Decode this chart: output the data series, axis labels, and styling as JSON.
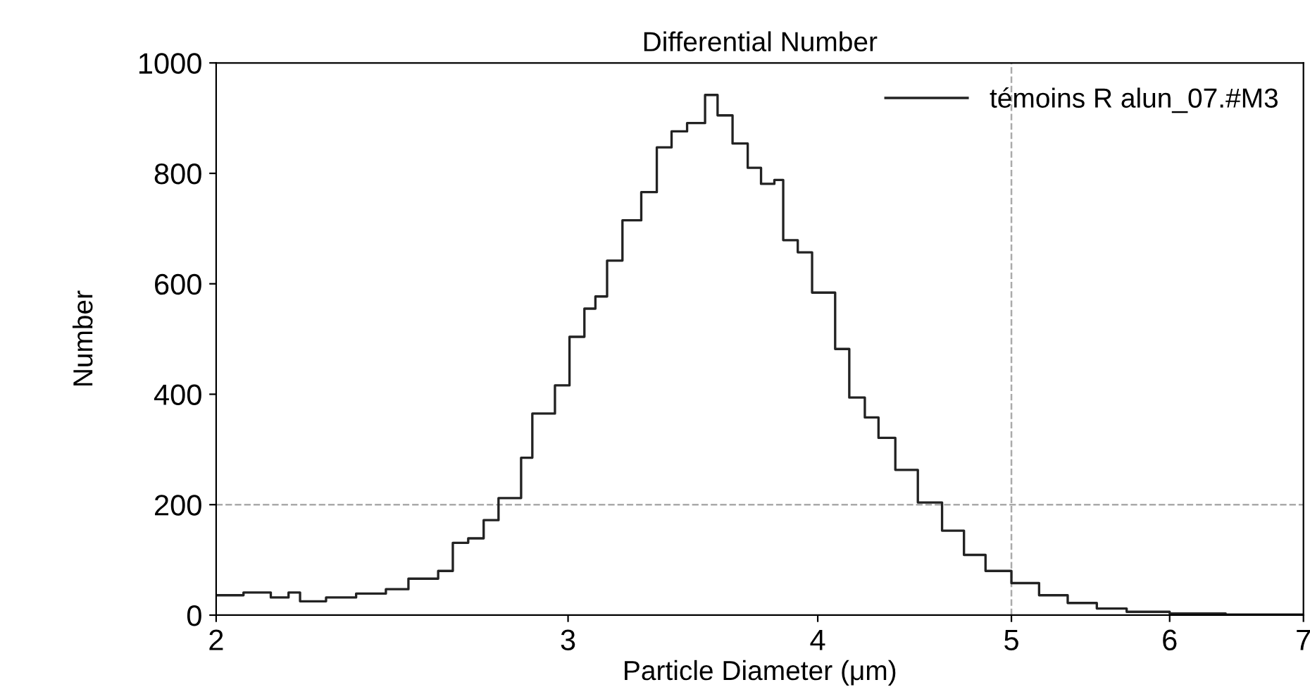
{
  "chart_data": {
    "type": "step",
    "title": "Differential Number",
    "xlabel": "Particle Diameter (μm)",
    "ylabel": "Number",
    "log": "x",
    "xlim": [
      2,
      7
    ],
    "xticks": [
      2,
      3,
      4,
      5,
      6,
      7
    ],
    "ylim": [
      0,
      1000
    ],
    "yticks": [
      0,
      200,
      400,
      600,
      800,
      1000
    ],
    "grid": false,
    "legend": "top right",
    "ref_lines": [
      {
        "axis": "y",
        "value": 200,
        "color": "#aaaaaa",
        "line_style": "dashed"
      },
      {
        "axis": "x",
        "value": 5,
        "color": "#aaaaaa",
        "line_style": "dashed"
      }
    ],
    "series": [
      {
        "name": "témoins R alun_07.#M3",
        "color": "#222222",
        "x": [
          2.0,
          2.064,
          2.13,
          2.174,
          2.203,
          2.27,
          2.35,
          2.432,
          2.496,
          2.583,
          2.627,
          2.674,
          2.722,
          2.769,
          2.842,
          2.879,
          2.955,
          3.005,
          3.057,
          3.096,
          3.138,
          3.194,
          3.264,
          3.323,
          3.38,
          3.441,
          3.513,
          3.564,
          3.626,
          3.69,
          3.747,
          3.805,
          3.844,
          3.909,
          3.974,
          4.081,
          4.148,
          4.223,
          4.29,
          4.374,
          4.489,
          4.616,
          4.734,
          4.853,
          5.0,
          5.162,
          5.335,
          5.517,
          5.71,
          6.0,
          6.4,
          7.0
        ],
        "values": [
          36,
          41,
          32,
          41,
          25,
          32,
          39,
          47,
          66,
          80,
          131,
          139,
          172,
          212,
          285,
          365,
          416,
          504,
          555,
          577,
          642,
          715,
          766,
          847,
          876,
          891,
          942,
          905,
          854,
          810,
          781,
          788,
          679,
          657,
          584,
          482,
          394,
          358,
          321,
          263,
          204,
          153,
          109,
          80,
          58,
          36,
          22,
          12,
          6,
          3,
          1,
          0
        ]
      }
    ]
  }
}
